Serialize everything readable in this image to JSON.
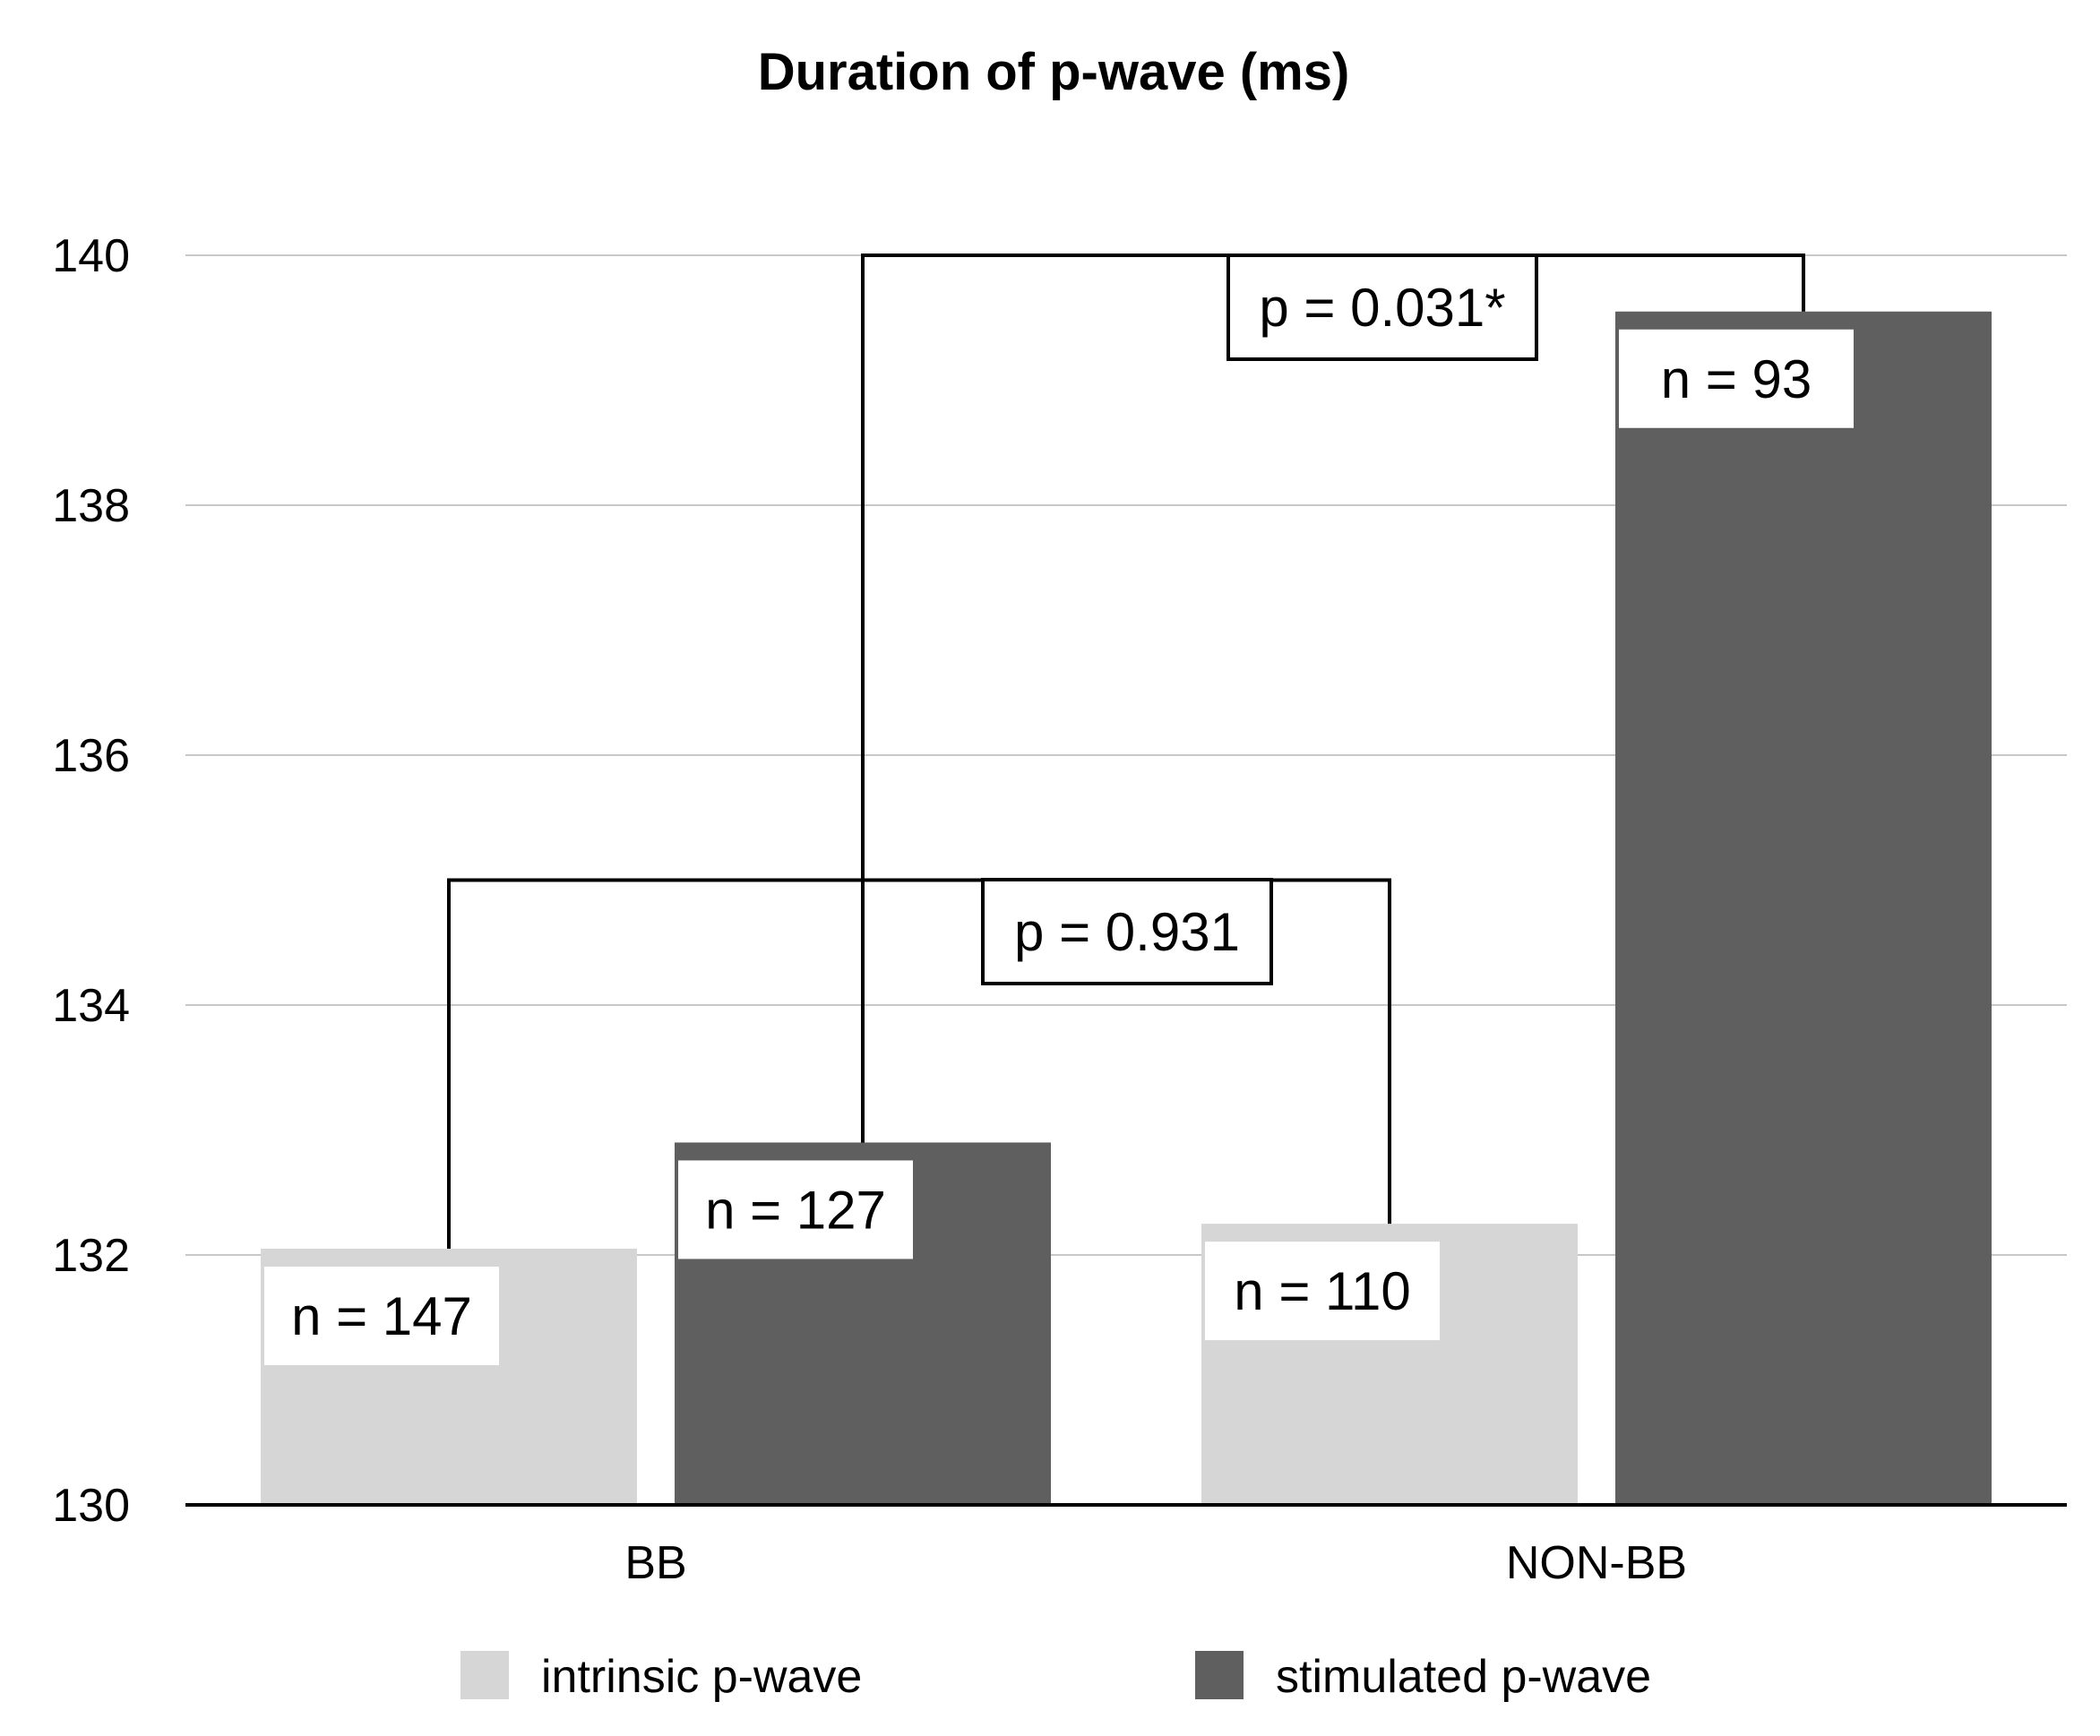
{
  "chart_data": {
    "type": "bar",
    "title": "Duration of p-wave (ms)",
    "xlabel": "",
    "ylabel": "",
    "ylim": [
      130,
      140
    ],
    "yticks": [
      130,
      132,
      134,
      136,
      138,
      140
    ],
    "grid": true,
    "legend_position": "bottom",
    "categories": [
      "BB",
      "NON-BB"
    ],
    "series": [
      {
        "name": "intrinsic p-wave",
        "color": "#d6d6d6",
        "values": [
          132.05,
          132.25
        ],
        "labels": [
          "n = 147",
          "n = 110"
        ]
      },
      {
        "name": "stimulated p-wave",
        "color": "#5f5f5f",
        "values": [
          132.9,
          139.55
        ],
        "labels": [
          "n = 127",
          "n = 93"
        ]
      }
    ],
    "annotations": [
      {
        "text": "p = 0.931",
        "from": {
          "category": 0,
          "series": 0
        },
        "to": {
          "category": 1,
          "series": 0
        },
        "level": 135
      },
      {
        "text": "p = 0.031*",
        "from": {
          "category": 0,
          "series": 1
        },
        "to": {
          "category": 1,
          "series": 1
        },
        "level": 140
      }
    ]
  }
}
